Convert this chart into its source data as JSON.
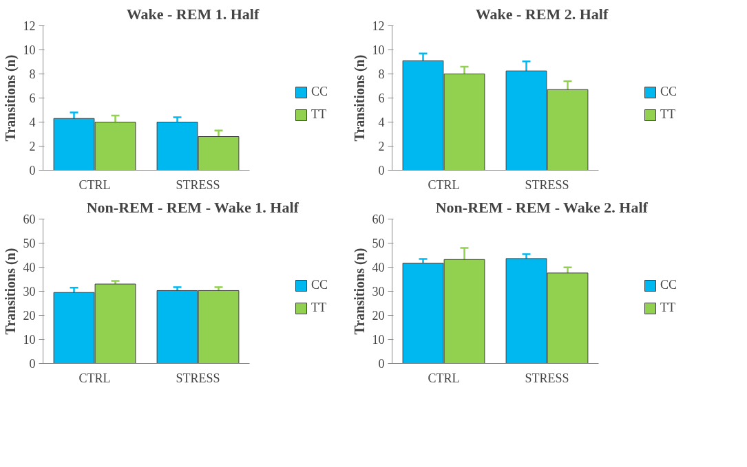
{
  "chart_data": [
    {
      "type": "bar",
      "title": "Wake - REM 1. Half",
      "ylabel": "Transitions (n)",
      "categories": [
        "CTRL",
        "STRESS"
      ],
      "ylim": [
        0,
        12
      ],
      "yticks": [
        0,
        2,
        4,
        6,
        8,
        10,
        12
      ],
      "legend": "right",
      "grid": false,
      "series": [
        {
          "name": "CC",
          "color": "#00b8f0",
          "values": [
            4.3,
            4.0
          ],
          "errors": [
            0.5,
            0.4
          ]
        },
        {
          "name": "TT",
          "color": "#92d050",
          "values": [
            4.0,
            2.8
          ],
          "errors": [
            0.55,
            0.5
          ]
        }
      ]
    },
    {
      "type": "bar",
      "title": "Wake - REM 2. Half",
      "ylabel": "Transitions (n)",
      "categories": [
        "CTRL",
        "STRESS"
      ],
      "ylim": [
        0,
        12
      ],
      "yticks": [
        0,
        2,
        4,
        6,
        8,
        10,
        12
      ],
      "legend": "right",
      "grid": false,
      "series": [
        {
          "name": "CC",
          "color": "#00b8f0",
          "values": [
            9.1,
            8.25
          ],
          "errors": [
            0.6,
            0.8
          ]
        },
        {
          "name": "TT",
          "color": "#92d050",
          "values": [
            8.0,
            6.7
          ],
          "errors": [
            0.6,
            0.7
          ]
        }
      ]
    },
    {
      "type": "bar",
      "title": "Non-REM - REM - Wake 1. Half",
      "ylabel": "Transitions (n)",
      "categories": [
        "CTRL",
        "STRESS"
      ],
      "ylim": [
        0,
        60
      ],
      "yticks": [
        0,
        10,
        20,
        30,
        40,
        50,
        60
      ],
      "legend": "right",
      "grid": false,
      "series": [
        {
          "name": "CC",
          "color": "#00b8f0",
          "values": [
            29.5,
            30.3
          ],
          "errors": [
            2,
            1.4
          ]
        },
        {
          "name": "TT",
          "color": "#92d050",
          "values": [
            33.0,
            30.3
          ],
          "errors": [
            1.3,
            1.4
          ]
        }
      ]
    },
    {
      "type": "bar",
      "title": "Non-REM - REM - Wake 2. Half",
      "ylabel": "Transitions (n)",
      "categories": [
        "CTRL",
        "STRESS"
      ],
      "ylim": [
        0,
        60
      ],
      "yticks": [
        0,
        10,
        20,
        30,
        40,
        50,
        60
      ],
      "legend": "right",
      "grid": false,
      "series": [
        {
          "name": "CC",
          "color": "#00b8f0",
          "values": [
            41.7,
            43.6
          ],
          "errors": [
            1.7,
            1.8
          ]
        },
        {
          "name": "TT",
          "color": "#92d050",
          "values": [
            43.2,
            37.6
          ],
          "errors": [
            4.8,
            2.3
          ]
        }
      ]
    }
  ]
}
